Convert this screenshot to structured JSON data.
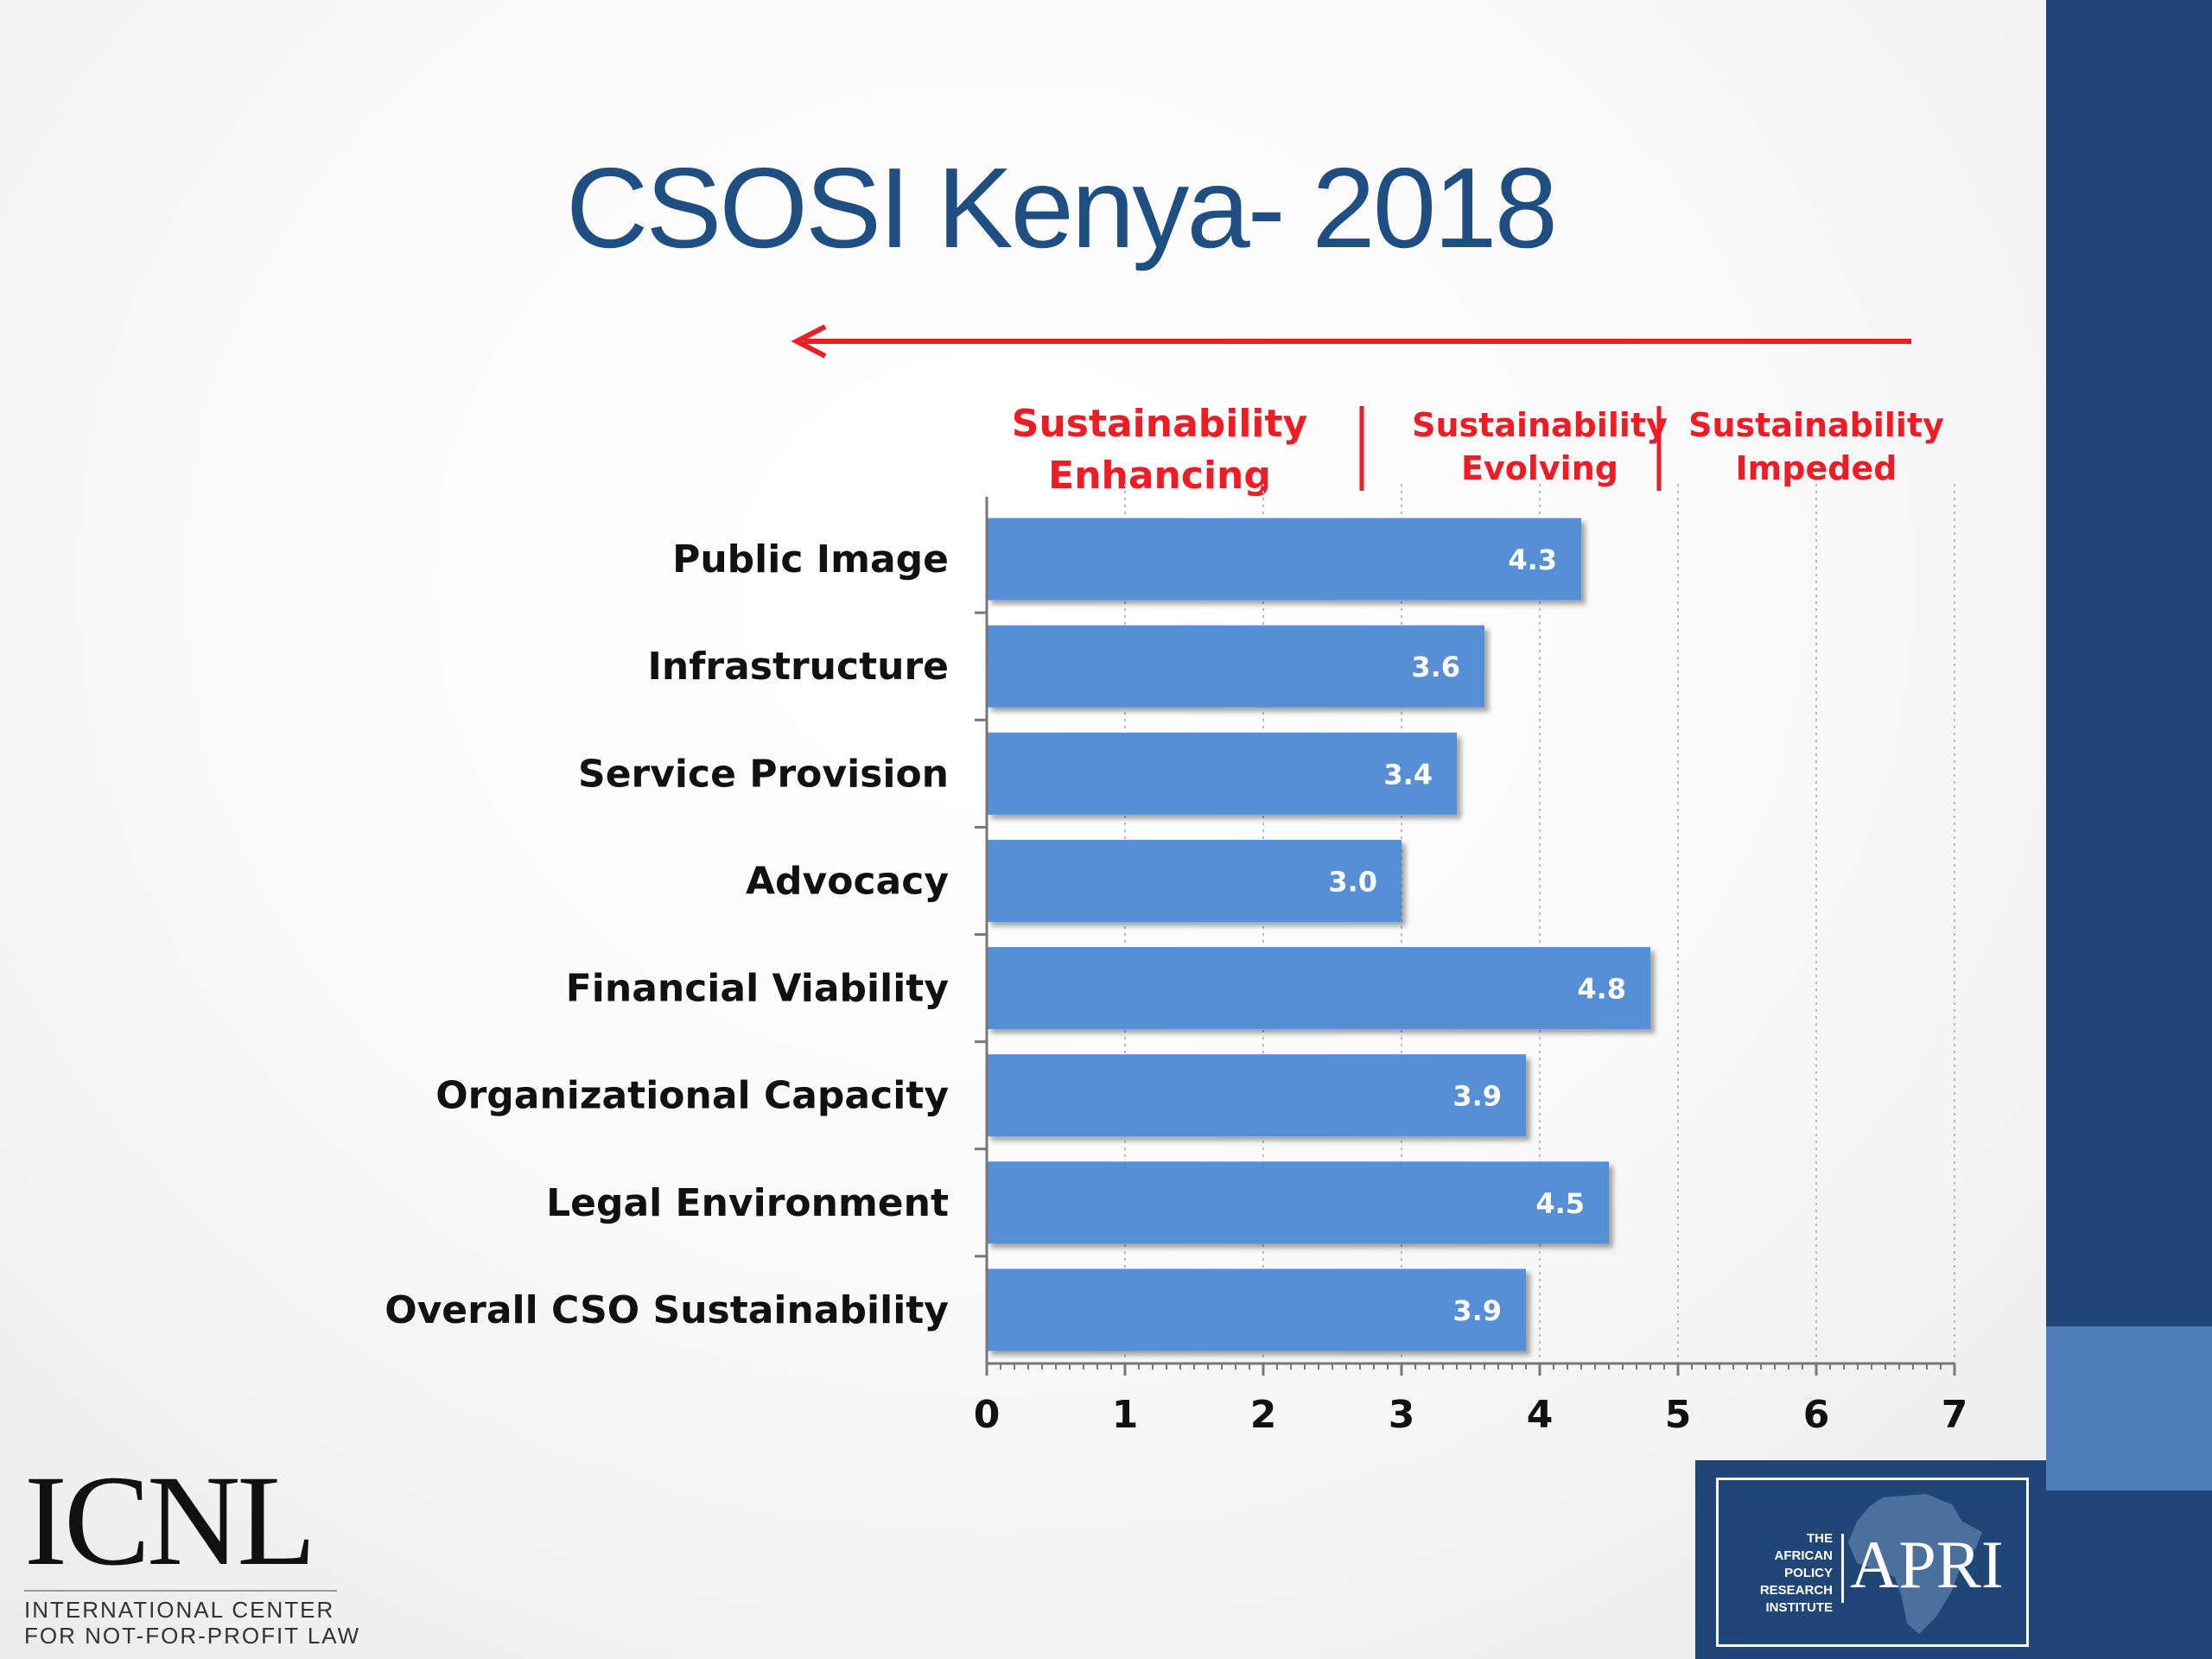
{
  "slide": {
    "title": "CSOSI Kenya- 2018"
  },
  "chart_data": {
    "type": "bar",
    "orientation": "horizontal",
    "categories": [
      "Public Image",
      "Infrastructure",
      "Service Provision",
      "Advocacy",
      "Financial Viability",
      "Organizational Capacity",
      "Legal Environment",
      "Overall CSO Sustainability"
    ],
    "values": [
      4.3,
      3.6,
      3.4,
      3.0,
      4.8,
      3.9,
      4.5,
      3.9
    ],
    "value_labels": [
      "4.3",
      "3.6",
      "3.4",
      "3.0",
      "4.8",
      "3.9",
      "4.5",
      "3.9"
    ],
    "x_ticks": [
      0,
      1,
      2,
      3,
      4,
      5,
      6,
      7
    ],
    "x_tick_labels": [
      "0",
      "1",
      "2",
      "3",
      "4",
      "5",
      "6",
      "7"
    ],
    "xlim": [
      0,
      7
    ],
    "grid": "vertical dotted",
    "bar_color": "#568fd5",
    "annotation_color": "#ee1c24",
    "zones": [
      {
        "label_lines": [
          "Sustainability",
          "Enhancing"
        ],
        "range": [
          1,
          3
        ]
      },
      {
        "label_lines": [
          "Sustainability",
          "Evolving"
        ],
        "range": [
          3,
          5
        ]
      },
      {
        "label_lines": [
          "Sustainability",
          "Impeded"
        ],
        "range": [
          5,
          7
        ]
      }
    ],
    "zone_dividers": [
      2.4,
      4.55
    ],
    "arrow_direction": "left"
  },
  "logos": {
    "icnl": {
      "word": "ICNL",
      "line1": "INTERNATIONAL CENTER",
      "line2": "FOR NOT-FOR-PROFIT LAW"
    },
    "apri": {
      "small_text": "THE\nAFRICAN\nPOLICY RESEARCH\nINSTITUTE",
      "word": "APRI"
    }
  },
  "colors": {
    "title": "#1f4e82",
    "band_dark": "#1f4676",
    "band_light": "#4f7fb8"
  }
}
